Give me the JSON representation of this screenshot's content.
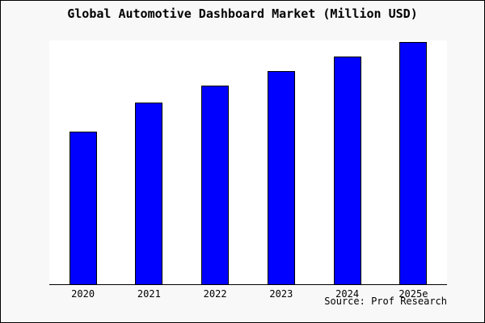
{
  "title": "Global Automotive Dashboard Market (Million USD)",
  "source_note": "Source: Prof Research",
  "colors": {
    "background": "#f8f8f8",
    "plot_background": "#ffffff",
    "bar_fill": "#0000ff",
    "bar_border": "#000000",
    "axis": "#000000",
    "text": "#000000"
  },
  "chart_data": {
    "type": "bar",
    "title": "Global Automotive Dashboard Market (Million USD)",
    "categories": [
      "2020",
      "2021",
      "2022",
      "2023",
      "2024",
      "2025e"
    ],
    "values": [
      63,
      75,
      82,
      88,
      94,
      100
    ],
    "values_note": "relative bar heights, max bar = 100; no y-axis tick labels or gridlines are shown in the chart",
    "xlabel": "",
    "ylabel": "",
    "y_axis_labels_visible": false,
    "grid": false,
    "legend": false,
    "source": "Source: Prof Research"
  }
}
